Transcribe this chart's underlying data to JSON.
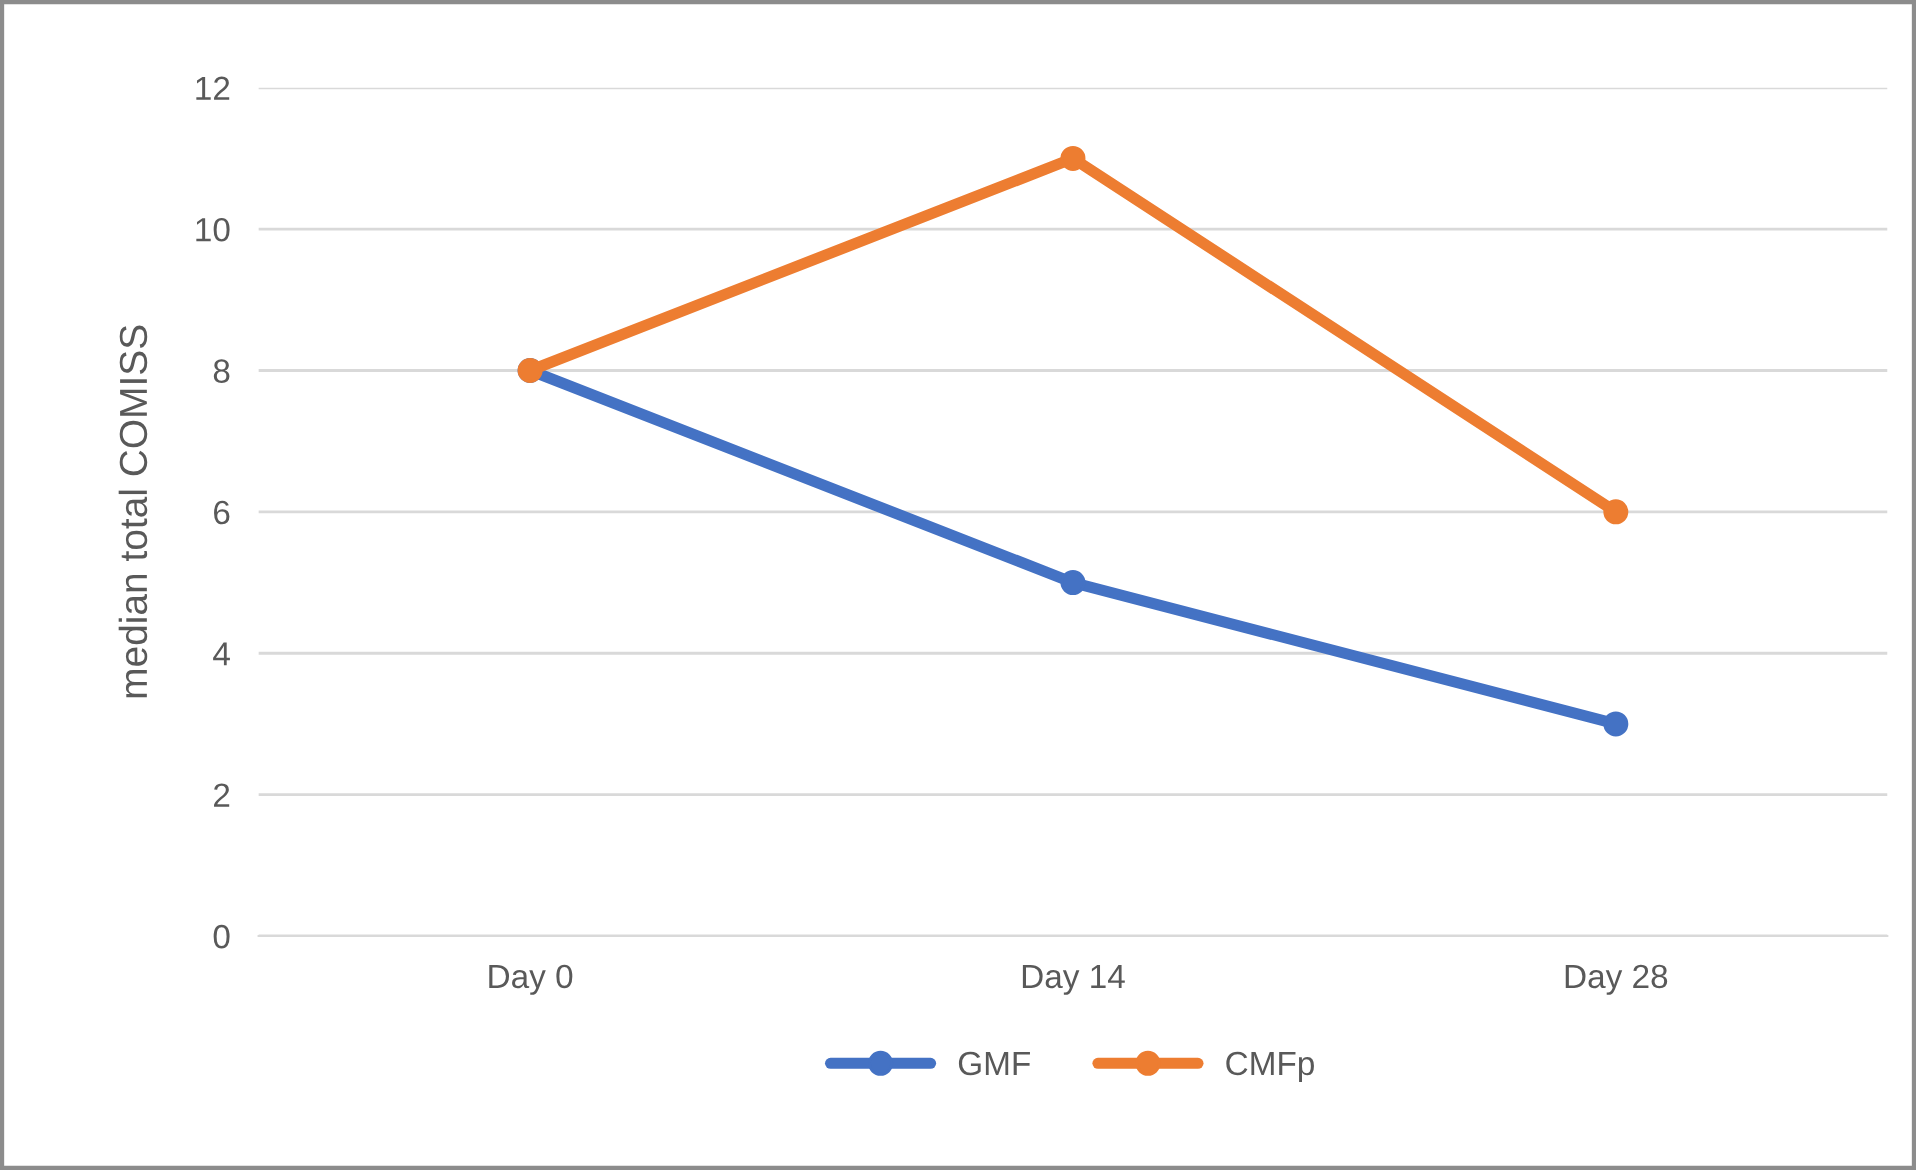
{
  "chart_data": {
    "type": "line",
    "ylabel": "median total COMISS",
    "categories": [
      "Day 0",
      "Day 14",
      "Day 28"
    ],
    "series": [
      {
        "name": "GMF",
        "color": "#4472c4",
        "values": [
          8,
          5,
          3
        ]
      },
      {
        "name": "CMFp",
        "color": "#ed7d31",
        "values": [
          8,
          11,
          6
        ]
      }
    ],
    "ylim": [
      0,
      12
    ],
    "yticks": [
      0,
      2,
      4,
      6,
      8,
      10,
      12
    ],
    "grid": "y",
    "legend": "bottom",
    "marker": "circle",
    "line_style": "solid"
  }
}
